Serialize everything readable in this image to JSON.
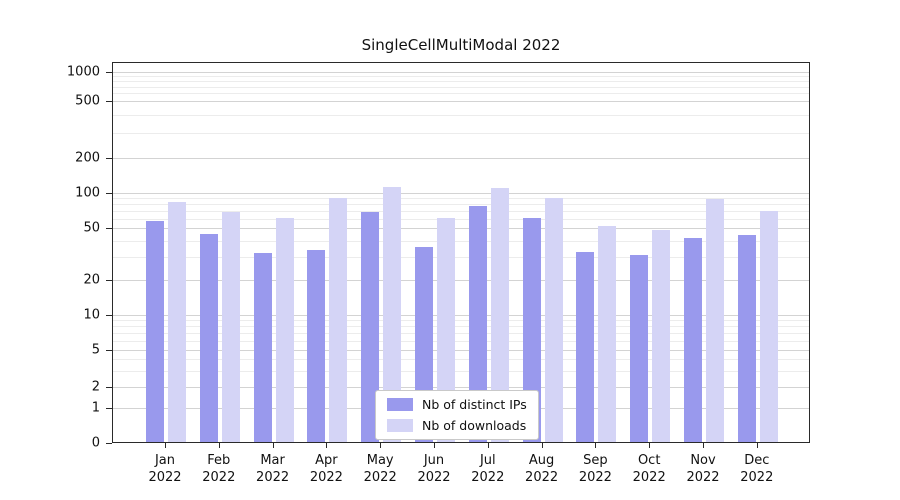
{
  "title": "SingleCellMultiModal 2022",
  "chart_data": {
    "type": "bar",
    "title": "SingleCellMultiModal 2022",
    "yscale": "symlog",
    "grid": true,
    "legend_position": "lower center inside plot",
    "categories": [
      "Jan",
      "Feb",
      "Mar",
      "Apr",
      "May",
      "Jun",
      "Jul",
      "Aug",
      "Sep",
      "Oct",
      "Nov",
      "Dec"
    ],
    "year": "2022",
    "yticks": [
      0,
      1,
      2,
      5,
      10,
      20,
      50,
      100,
      200,
      500,
      1000
    ],
    "series": [
      {
        "name": "Nb of distinct IPs",
        "color": "#9999ed",
        "values": [
          58,
          45,
          32,
          34,
          68,
          36,
          78,
          61,
          33,
          31,
          42,
          44
        ]
      },
      {
        "name": "Nb of downloads",
        "color": "#d4d4f6",
        "values": [
          84,
          69,
          61,
          90,
          112,
          61,
          110,
          90,
          52,
          48,
          89,
          70
        ]
      }
    ]
  }
}
